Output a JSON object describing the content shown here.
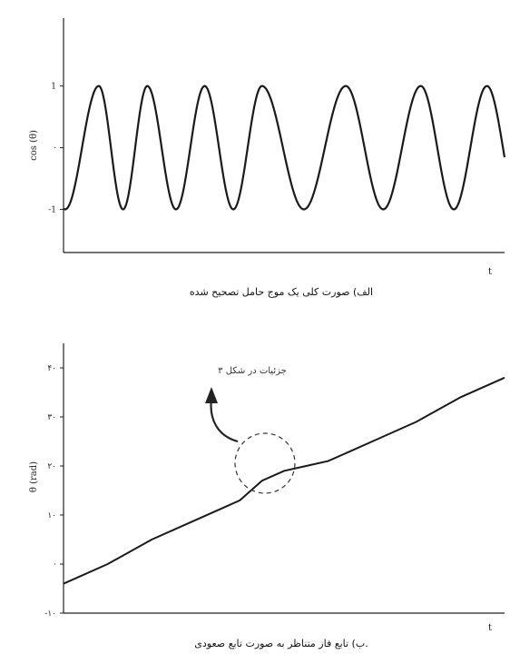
{
  "chart_data": [
    {
      "type": "line",
      "caption": "الف) صورت کلی یک موج حامل تصحیح شده",
      "xlabel": "t",
      "ylabel": "cos (θ)",
      "yticks": [
        "1",
        "·",
        "-1"
      ],
      "ylim": [
        -1.7,
        2.1
      ],
      "xlim": [
        0,
        1
      ],
      "series": [
        {
          "description": "cos of phase function; peaks near these t values",
          "peaks_t": [
            0.08,
            0.19,
            0.32,
            0.45,
            0.64,
            0.81,
            0.96
          ]
        }
      ]
    },
    {
      "type": "line",
      "caption": "ب) تابع فاز متناظر به صورت تابع صعودی.",
      "xlabel": "t",
      "ylabel": "θ (rad)",
      "yticks": [
        "۴۰",
        "۳۰",
        "۲۰",
        "۱۰",
        "·",
        "-۱۰"
      ],
      "ylim": [
        -10,
        45
      ],
      "xlim": [
        0,
        1
      ],
      "annotation": "جزئیات در شکل ۳",
      "series": [
        {
          "x": [
            0,
            0.1,
            0.2,
            0.3,
            0.4,
            0.45,
            0.5,
            0.55,
            0.6,
            0.7,
            0.8,
            0.9,
            1.0
          ],
          "y": [
            -4,
            0,
            5,
            9,
            13,
            17,
            19,
            20,
            21,
            25,
            29,
            34,
            38
          ]
        }
      ]
    }
  ]
}
